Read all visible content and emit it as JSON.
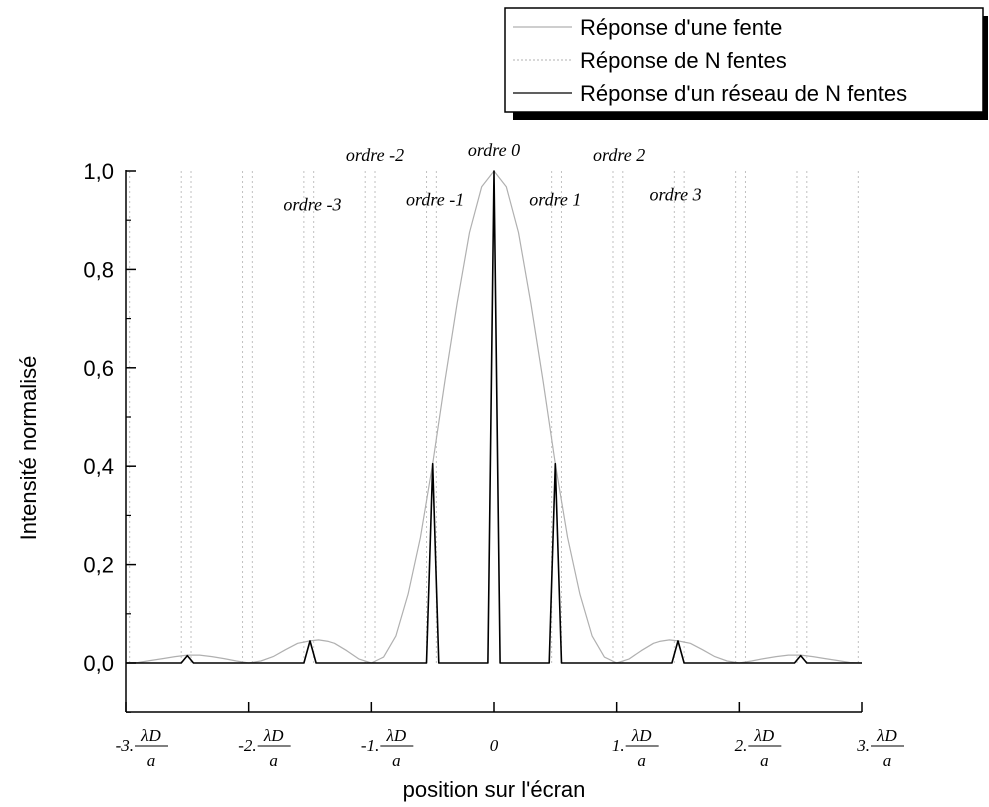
{
  "chart_data": {
    "type": "line",
    "xlabel": "position sur l'écran",
    "ylabel": "Intensité normalisé",
    "xlim": [
      -3,
      3
    ],
    "ylim": [
      -0.1,
      1.0
    ],
    "y_ticks": [
      {
        "value": 0.0,
        "label": "0,0"
      },
      {
        "value": 0.2,
        "label": "0,2"
      },
      {
        "value": 0.4,
        "label": "0,4"
      },
      {
        "value": 0.6,
        "label": "0,6"
      },
      {
        "value": 0.8,
        "label": "0,8"
      },
      {
        "value": 1.0,
        "label": "1,0"
      }
    ],
    "x_ticks": [
      {
        "value": -3,
        "coef": "-3.",
        "frac_num": "λD",
        "frac_den": "a"
      },
      {
        "value": -2,
        "coef": "-2.",
        "frac_num": "λD",
        "frac_den": "a"
      },
      {
        "value": -1,
        "coef": "-1.",
        "frac_num": "λD",
        "frac_den": "a"
      },
      {
        "value": 0,
        "coef": "0",
        "frac_num": "",
        "frac_den": ""
      },
      {
        "value": 1,
        "coef": "1.",
        "frac_num": "λD",
        "frac_den": "a"
      },
      {
        "value": 2,
        "coef": "2.",
        "frac_num": "λD",
        "frac_den": "a"
      },
      {
        "value": 3,
        "coef": "3.",
        "frac_num": "λD",
        "frac_den": "a"
      }
    ],
    "legend": {
      "position": "top-right",
      "entries": [
        {
          "label": "Réponse d'une fente",
          "color": "#b0b0b0",
          "style": "solid"
        },
        {
          "label": "Réponse de N fentes",
          "color": "#c0c0c0",
          "style": "dotted"
        },
        {
          "label": "Réponse d'un réseau de N fentes",
          "color": "#000000",
          "style": "solid"
        }
      ]
    },
    "series": [
      {
        "name": "Réponse d'une fente",
        "color": "#b0b0b0",
        "style": "solid",
        "x": [
          -3.0,
          -2.9,
          -2.8,
          -2.7,
          -2.6,
          -2.5,
          -2.4,
          -2.3,
          -2.2,
          -2.1,
          -2.0,
          -1.9,
          -1.8,
          -1.7,
          -1.6,
          -1.5,
          -1.43,
          -1.35,
          -1.3,
          -1.2,
          -1.1,
          -1.0,
          -0.9,
          -0.8,
          -0.7,
          -0.6,
          -0.5,
          -0.4,
          -0.3,
          -0.2,
          -0.1,
          0.0,
          0.1,
          0.2,
          0.3,
          0.4,
          0.5,
          0.6,
          0.7,
          0.8,
          0.9,
          1.0,
          1.1,
          1.2,
          1.3,
          1.35,
          1.43,
          1.5,
          1.6,
          1.7,
          1.8,
          1.9,
          2.0,
          2.1,
          2.2,
          2.3,
          2.4,
          2.5,
          2.6,
          2.7,
          2.8,
          2.9,
          3.0
        ],
        "y": [
          0.0,
          0.001,
          0.005,
          0.009,
          0.013,
          0.016,
          0.016,
          0.013,
          0.009,
          0.004,
          0.0,
          0.004,
          0.013,
          0.027,
          0.04,
          0.045,
          0.047,
          0.044,
          0.04,
          0.025,
          0.008,
          0.0,
          0.012,
          0.055,
          0.14,
          0.255,
          0.405,
          0.573,
          0.732,
          0.875,
          0.968,
          1.0,
          0.968,
          0.875,
          0.732,
          0.573,
          0.405,
          0.255,
          0.14,
          0.055,
          0.012,
          0.0,
          0.008,
          0.025,
          0.04,
          0.044,
          0.047,
          0.045,
          0.04,
          0.027,
          0.013,
          0.004,
          0.0,
          0.004,
          0.009,
          0.013,
          0.016,
          0.016,
          0.013,
          0.009,
          0.005,
          0.001,
          0.0
        ]
      },
      {
        "name": "Réponse d'un réseau de N fentes",
        "color": "#000000",
        "style": "solid",
        "x": [
          -3.0,
          -2.55,
          -2.5,
          -2.45,
          -1.55,
          -1.5,
          -1.45,
          -0.55,
          -0.5,
          -0.45,
          -0.05,
          0.0,
          0.05,
          0.45,
          0.5,
          0.55,
          1.45,
          1.5,
          1.55,
          2.45,
          2.5,
          2.55,
          3.0
        ],
        "y": [
          0.0,
          0.0,
          0.015,
          0.0,
          0.0,
          0.045,
          0.0,
          0.0,
          0.405,
          0.0,
          0.0,
          1.0,
          0.0,
          0.0,
          0.405,
          0.0,
          0.0,
          0.045,
          0.0,
          0.0,
          0.015,
          0.0,
          0.0
        ]
      },
      {
        "name": "Réponse de N fentes",
        "color": "#c0c0c0",
        "style": "dotted",
        "vertical_lines_x": [
          -2.97,
          -2.55,
          -2.47,
          -2.05,
          -1.97,
          -1.55,
          -1.47,
          -1.05,
          -0.97,
          -0.55,
          -0.47,
          0.47,
          0.55,
          0.97,
          1.05,
          1.47,
          1.55,
          1.97,
          2.05,
          2.47,
          2.55,
          2.97
        ]
      }
    ],
    "annotations": [
      {
        "text": "ordre 0",
        "x": 0.0,
        "y": 1.03
      },
      {
        "text": "ordre -1",
        "x": -0.48,
        "y": 0.93
      },
      {
        "text": "ordre 1",
        "x": 0.5,
        "y": 0.93
      },
      {
        "text": "ordre -2",
        "x": -0.97,
        "y": 1.02
      },
      {
        "text": "ordre 2",
        "x": 1.02,
        "y": 1.02
      },
      {
        "text": "ordre -3",
        "x": -1.48,
        "y": 0.92
      },
      {
        "text": "ordre 3",
        "x": 1.48,
        "y": 0.94
      }
    ]
  }
}
